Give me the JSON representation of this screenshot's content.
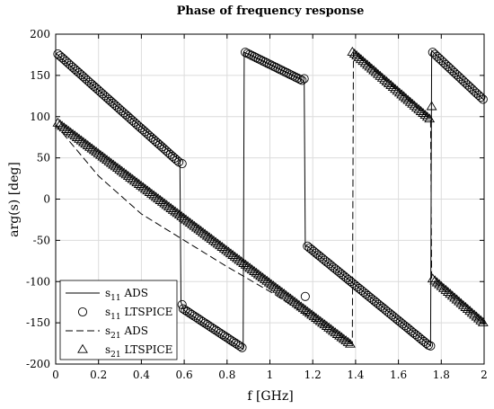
{
  "chart_data": {
    "type": "line",
    "title": "Phase of frequency response",
    "xlabel": "f [GHz]",
    "ylabel": "arg(s) [deg]",
    "xlim": [
      0,
      2
    ],
    "ylim": [
      -200,
      200
    ],
    "xticks": [
      0,
      0.2,
      0.4,
      0.6,
      0.8,
      1,
      1.2,
      1.4,
      1.6,
      1.8,
      2
    ],
    "xtick_labels": [
      "0",
      "0.2",
      "0.4",
      "0.6",
      "0.8",
      "1",
      "1.2",
      "1.4",
      "1.6",
      "1.8",
      "2"
    ],
    "yticks": [
      -200,
      -150,
      -100,
      -50,
      0,
      50,
      100,
      150,
      200
    ],
    "ytick_labels": [
      "-200",
      "-150",
      "-100",
      "-50",
      "0",
      "50",
      "100",
      "150",
      "200"
    ],
    "grid": true,
    "legend_position": "bottom-left",
    "legend": [
      {
        "base": "s",
        "sub": "11",
        "suffix": "ADS",
        "style": "solid-line"
      },
      {
        "base": "s",
        "sub": "11",
        "suffix": "LTSPICE",
        "style": "circle-marker"
      },
      {
        "base": "s",
        "sub": "21",
        "suffix": "ADS",
        "style": "dashed-line"
      },
      {
        "base": "s",
        "sub": "21",
        "suffix": "LTSPICE",
        "style": "triangle-marker"
      }
    ],
    "series": [
      {
        "name": "s11 ADS",
        "style": "solid",
        "x": [
          0,
          0.58,
          0.585,
          0.6,
          0.875,
          0.88,
          1.15,
          1.16,
          1.165,
          1.175,
          1.75,
          1.755,
          2.0
        ],
        "y": [
          177,
          47,
          -125,
          -135,
          -182,
          178,
          145,
          142,
          -58,
          -57,
          -178,
          180,
          120
        ]
      },
      {
        "name": "s21 ADS",
        "style": "dashed",
        "x": [
          0,
          0.2,
          0.4,
          0.6,
          0.8,
          1.0,
          1.2,
          1.385,
          1.39,
          1.75,
          1.755,
          2.0
        ],
        "y": [
          90,
          28,
          -18,
          -50,
          -82,
          -112,
          -145,
          -175,
          178,
          96,
          -97,
          -152
        ]
      },
      {
        "name": "s11 LTSPICE",
        "marker": "circle",
        "x": [
          0.01,
          0.59,
          0.59,
          0.87,
          0.88,
          1.15,
          1.165,
          1.175,
          1.75,
          1.76,
          1.995
        ],
        "y": [
          176,
          43,
          -128,
          -180,
          178,
          146,
          -118,
          -57,
          -178,
          178,
          120
        ],
        "segments": [
          {
            "x_range": [
              0.01,
              0.575
            ],
            "y_range": [
              176,
              45
            ],
            "n": 58
          },
          {
            "x_range": [
              0.595,
              0.87
            ],
            "y_range": [
              -133,
              -180
            ],
            "n": 28
          },
          {
            "x_range": [
              0.885,
              1.15
            ],
            "y_range": [
              178,
              144
            ],
            "n": 27
          },
          {
            "x_range": [
              1.175,
              1.74
            ],
            "y_range": [
              -57,
              -177
            ],
            "n": 57
          },
          {
            "x_range": [
              1.76,
              1.995
            ],
            "y_range": [
              178,
              121
            ],
            "n": 24
          }
        ],
        "isolated_points": [
          {
            "x": 0.59,
            "y": 43
          },
          {
            "x": 0.59,
            "y": -128
          },
          {
            "x": 1.16,
            "y": 146
          },
          {
            "x": 1.165,
            "y": -118
          },
          {
            "x": 1.75,
            "y": -178
          }
        ]
      },
      {
        "name": "s21 LTSPICE",
        "marker": "triangle",
        "segments": [
          {
            "x_range": [
              0.01,
              1.375
            ],
            "y_range": [
              92,
              -176
            ],
            "n": 138
          },
          {
            "x_range": [
              1.385,
              1.745
            ],
            "y_range": [
              178,
              97
            ],
            "n": 37
          },
          {
            "x_range": [
              1.76,
              1.995
            ],
            "y_range": [
              -97,
              -150
            ],
            "n": 24
          }
        ],
        "isolated_points": [
          {
            "x": 1.755,
            "y": 112
          }
        ]
      }
    ]
  }
}
